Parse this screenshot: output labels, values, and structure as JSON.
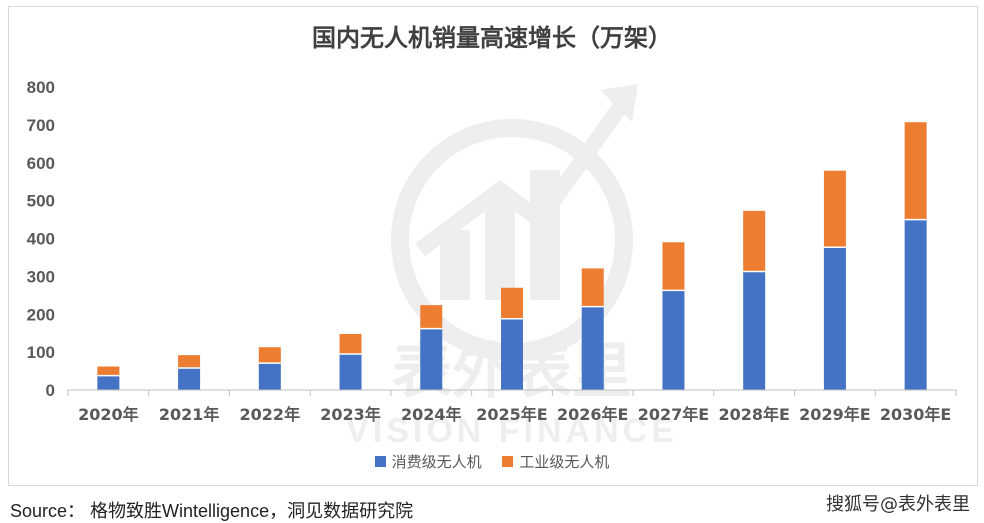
{
  "chart_data": {
    "type": "bar",
    "stacked": true,
    "title": "国内无人机销量高速增长（万架）",
    "categories": [
      "2020年",
      "2021年",
      "2022年",
      "2023年",
      "2024年",
      "2025年E",
      "2026年E",
      "2027年E",
      "2028年E",
      "2029年E",
      "2030年E"
    ],
    "series": [
      {
        "name": "消费级无人机",
        "color": "#4472C4",
        "values": [
          38,
          58,
          71,
          95,
          162,
          188,
          220,
          263,
          313,
          377,
          450
        ]
      },
      {
        "name": "工业级无人机",
        "color": "#ED7D31",
        "values": [
          24,
          34,
          42,
          53,
          62,
          82,
          101,
          127,
          160,
          202,
          257
        ]
      }
    ],
    "ylim": [
      0,
      800
    ],
    "yticks": [
      0,
      100,
      200,
      300,
      400,
      500,
      600,
      700,
      800
    ],
    "grid": false,
    "legend_position": "bottom"
  },
  "watermark": {
    "brand": "表外表里",
    "text": "VISION FINANCE"
  },
  "source_text": "Source：  格物致胜Wintelligence，洞见数据研究院",
  "credit_text": "搜狐号@表外表里"
}
